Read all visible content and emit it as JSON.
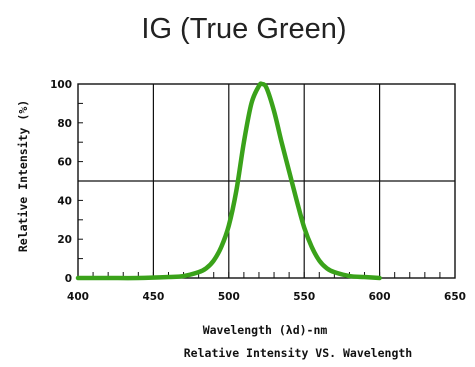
{
  "chart_data": {
    "type": "line",
    "title": "IG (True Green)",
    "xlabel": "Wavelength (λd)-nm",
    "ylabel": "Relative Intensity (%)",
    "caption": "Relative Intensity VS. Wavelength",
    "xlim": [
      400,
      650
    ],
    "ylim": [
      0,
      100
    ],
    "x_ticks": [
      "400",
      "450",
      "500",
      "550",
      "600",
      "650"
    ],
    "y_ticks": [
      "0",
      "20",
      "40",
      "60",
      "80",
      "100"
    ],
    "grid": true,
    "line_color": "#3aa21a",
    "series": [
      {
        "x": [
          400,
          420,
          440,
          460,
          470,
          480,
          485,
          490,
          495,
          500,
          505,
          510,
          515,
          520,
          522,
          525,
          530,
          535,
          540,
          545,
          550,
          555,
          560,
          565,
          570,
          580,
          590,
          600
        ],
        "y": [
          0,
          0,
          0,
          0.5,
          1,
          3,
          5,
          9,
          16,
          27,
          45,
          70,
          90,
          99,
          100,
          98,
          86,
          70,
          55,
          40,
          26,
          16,
          9,
          5,
          3,
          1,
          0.5,
          0
        ]
      }
    ]
  }
}
